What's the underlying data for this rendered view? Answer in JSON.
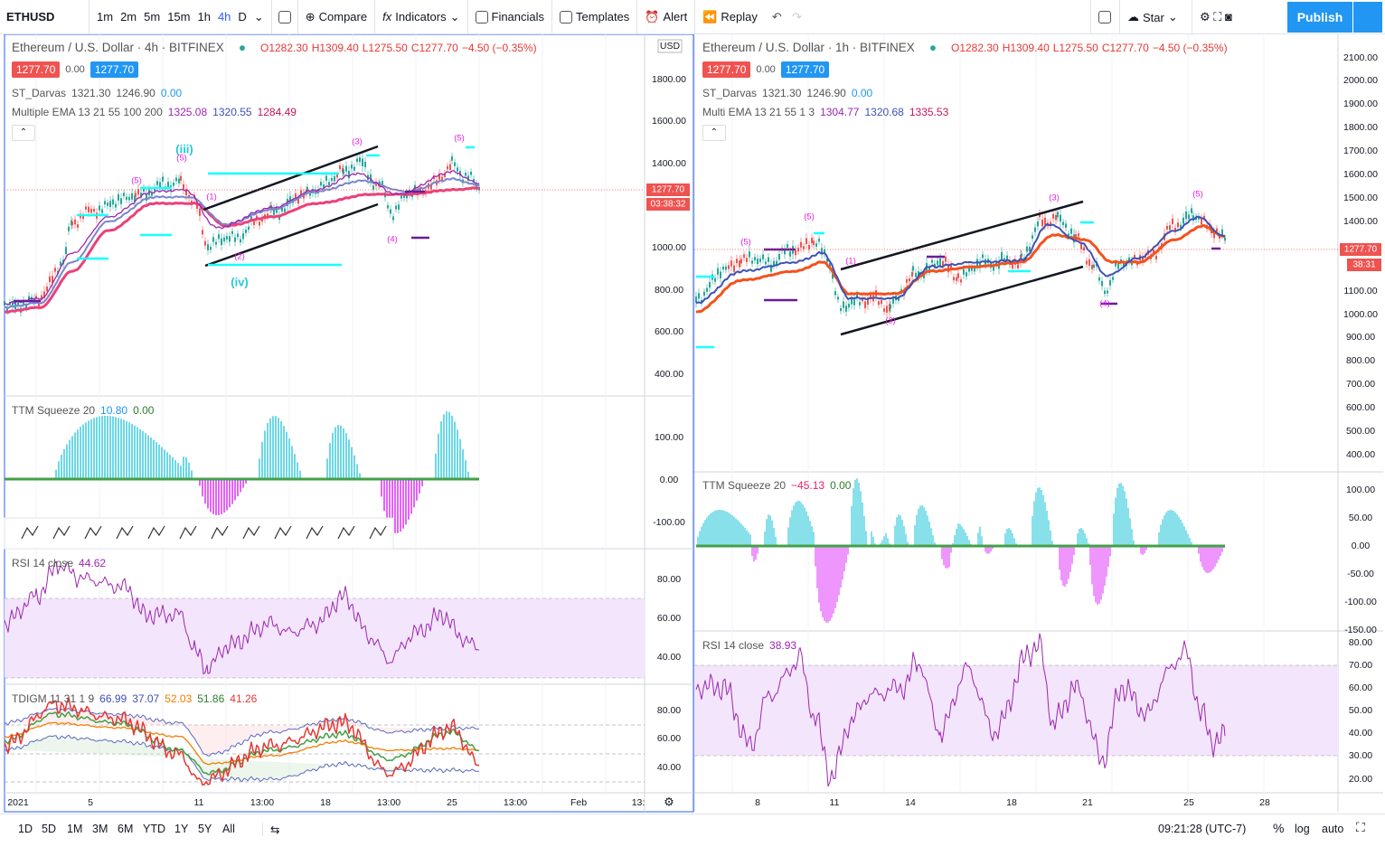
{
  "toolbar": {
    "symbol": "ETHUSD",
    "intervals": [
      "1m",
      "2m",
      "5m",
      "15m",
      "1h",
      "4h",
      "D"
    ],
    "buttons": [
      "Compare",
      "Indicators",
      "Financials",
      "Templates",
      "Alert",
      "Replay"
    ],
    "right_buttons": [
      "Star",
      "Publish"
    ]
  },
  "left_chart": {
    "title": "Ethereum / U.S. Dollar · 4h · BITFINEX",
    "ohlc": [
      "O1282.30",
      "H1309.40",
      "L1275.50",
      "C1277.70",
      "−4.50 (−0.35%)"
    ],
    "badges": [
      "1277.70",
      "0.00",
      "1277.70"
    ],
    "indicators": [
      {
        "name": "ST_Darvas",
        "values": [
          "1321.30",
          "1246.90",
          "0.00"
        ]
      },
      {
        "name": "Multiple EMA 13 21 55 100 200",
        "values": [
          "1325.08",
          "1320.55",
          "1284.49"
        ]
      }
    ],
    "currency": "USD",
    "price_axis": [
      "1800.00",
      "1600.00",
      "1400.00",
      "1000.00",
      "800.00",
      "600.00",
      "400.00"
    ],
    "price_tags": [
      "1277.70",
      "03:38:32"
    ],
    "wave_labels": [
      "(iii)",
      "(5)",
      "(5)",
      "(1)",
      "(2)",
      "(iv)",
      "(3)",
      "(4)",
      "(5)"
    ],
    "ttm": {
      "name": "TTM Squeeze 20",
      "values": [
        "10.80",
        "0.00"
      ],
      "axis": [
        "100.00",
        "0.00",
        "-100.00"
      ]
    },
    "rsi": {
      "name": "RSI 14 close",
      "values": [
        "44.62"
      ],
      "axis": [
        "80.00",
        "60.00",
        "40.00"
      ]
    },
    "tdigm": {
      "name": "TDIGM 11 31 1 9",
      "values": [
        "66.99",
        "37.07",
        "52.03",
        "51.86",
        "41.26"
      ],
      "axis": [
        "80.00",
        "60.00",
        "40.00"
      ]
    },
    "time_axis": [
      "2021",
      "5",
      "11",
      "13:00",
      "18",
      "13:00",
      "25",
      "13:00",
      "Feb",
      "13:"
    ]
  },
  "right_chart": {
    "title": "Ethereum / U.S. Dollar · 1h · BITFINEX",
    "ohlc": [
      "O1282.30",
      "H1309.40",
      "L1275.50",
      "C1277.70",
      "−4.50 (−0.35%)"
    ],
    "badges": [
      "1277.70",
      "0.00",
      "1277.70"
    ],
    "indicators": [
      {
        "name": "ST_Darvas",
        "values": [
          "1321.30",
          "1246.90",
          "0.00"
        ]
      },
      {
        "name": "Multi EMA 13 21 55 1 3",
        "values": [
          "1304.77",
          "1320.68",
          "1335.53"
        ]
      }
    ],
    "price_axis": [
      "2100.00",
      "2000.00",
      "1900.00",
      "1800.00",
      "1700.00",
      "1600.00",
      "1500.00",
      "1400.00",
      "1100.00",
      "1000.00",
      "900.00",
      "800.00",
      "700.00",
      "600.00",
      "500.00",
      "400.00"
    ],
    "price_tags": [
      "1277.70",
      "38:31"
    ],
    "wave_labels": [
      "(5)",
      "(5)",
      "(1)",
      "(2)",
      "(3)",
      "(4)",
      "(5)"
    ],
    "ttm": {
      "name": "TTM Squeeze 20",
      "values": [
        "−45.13",
        "0.00"
      ],
      "axis": [
        "100.00",
        "50.00",
        "0.00",
        "-50.00",
        "-100.00",
        "-150.00"
      ]
    },
    "rsi": {
      "name": "RSI 14 close",
      "values": [
        "38.93"
      ],
      "axis": [
        "80.00",
        "70.00",
        "60.00",
        "50.00",
        "40.00",
        "30.00",
        "20.00"
      ]
    },
    "time_axis": [
      "8",
      "11",
      "14",
      "18",
      "21",
      "25",
      "28"
    ]
  },
  "bottom_bar": {
    "ranges": [
      "1D",
      "5D",
      "1M",
      "3M",
      "6M",
      "YTD",
      "1Y",
      "5Y",
      "All"
    ],
    "time": "09:21:28 (UTC-7)",
    "options": [
      "%",
      "log",
      "auto"
    ]
  }
}
